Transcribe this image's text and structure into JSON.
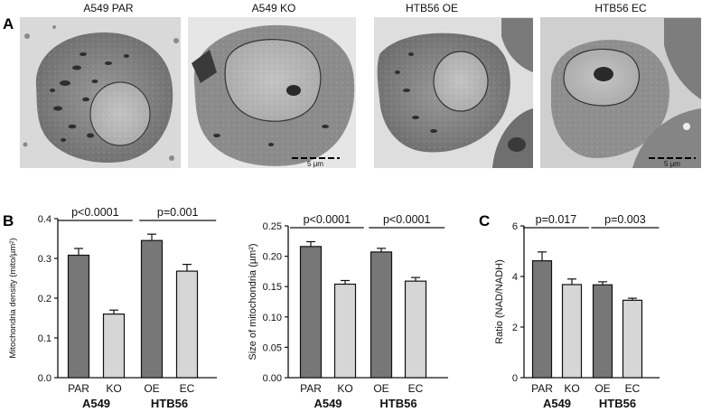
{
  "panel_a": {
    "letter": "A",
    "images": [
      {
        "title": "A549 PAR",
        "scale_bar": ""
      },
      {
        "title": "A549 KO",
        "scale_bar": "5 µm"
      },
      {
        "title": "HTB56 OE",
        "scale_bar": ""
      },
      {
        "title": "HTB56 EC",
        "scale_bar": "5 µm"
      }
    ]
  },
  "panel_b_letter": "B",
  "panel_c_letter": "C",
  "colors": {
    "dark_bar": "#777777",
    "light_bar": "#d6d6d6",
    "axis": "#111111"
  },
  "chart_data": [
    {
      "type": "bar",
      "panel": "B",
      "ylabel": "Mitochondria density (mito/µm²)",
      "ylim": [
        0,
        0.4
      ],
      "yticks": [
        "0.0",
        "0.1",
        "0.2",
        "0.3",
        "0.4"
      ],
      "categories": [
        "PAR",
        "KO",
        "OE",
        "EC"
      ],
      "groups": [
        "A549",
        "HTB56"
      ],
      "values": [
        0.308,
        0.16,
        0.345,
        0.268
      ],
      "errors": [
        0.017,
        0.01,
        0.016,
        0.017
      ],
      "bar_colors": [
        "dark",
        "light",
        "dark",
        "light"
      ],
      "comparisons": [
        "p<0.0001",
        "p=0.001"
      ]
    },
    {
      "type": "bar",
      "panel": "B",
      "ylabel": "Size of mitochondria (µm²)",
      "ylim": [
        0,
        0.25
      ],
      "yticks": [
        "0.00",
        "0.05",
        "0.10",
        "0.15",
        "0.20",
        "0.25"
      ],
      "categories": [
        "PAR",
        "KO",
        "OE",
        "EC"
      ],
      "groups": [
        "A549",
        "HTB56"
      ],
      "values": [
        0.216,
        0.154,
        0.207,
        0.159
      ],
      "errors": [
        0.008,
        0.006,
        0.006,
        0.006
      ],
      "bar_colors": [
        "dark",
        "light",
        "dark",
        "light"
      ],
      "comparisons": [
        "p<0.0001",
        "p<0.0001"
      ]
    },
    {
      "type": "bar",
      "panel": "C",
      "ylabel": "Ratio (NAD/NADH)",
      "ylim": [
        0,
        6
      ],
      "yticks": [
        "0",
        "2",
        "4",
        "6"
      ],
      "categories": [
        "PAR",
        "KO",
        "OE",
        "EC"
      ],
      "groups": [
        "A549",
        "HTB56"
      ],
      "values": [
        4.62,
        3.68,
        3.67,
        3.06
      ],
      "errors": [
        0.35,
        0.22,
        0.12,
        0.08
      ],
      "bar_colors": [
        "dark",
        "light",
        "dark",
        "light"
      ],
      "comparisons": [
        "p=0.017",
        "p=0.003"
      ]
    }
  ]
}
